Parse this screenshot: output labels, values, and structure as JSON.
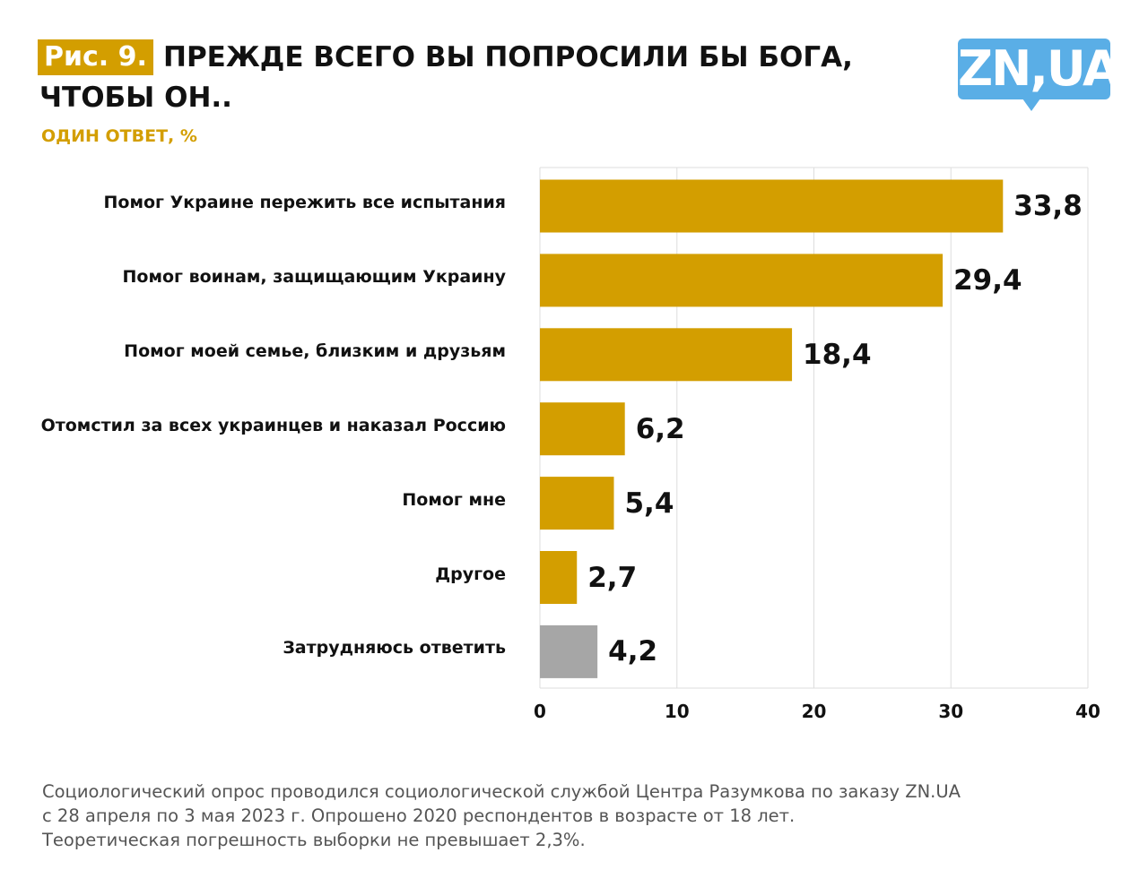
{
  "header": {
    "figure_label": "Рис. 9.",
    "title_line1": "ПРЕЖДЕ ВСЕГО ВЫ ПОПРОСИЛИ БЫ БОГА,",
    "title_line2": "ЧТОБЫ ОН..",
    "subtitle": "ОДИН ОТВЕТ, %",
    "logo": "ZN,UA"
  },
  "chart_data": {
    "type": "bar",
    "orientation": "horizontal",
    "categories": [
      "Помог Украине пережить все испытания",
      "Помог воинам, защищающим Украину",
      "Помог моей семье, близким и друзьям",
      "Отомстил за всех украинцев и наказал Россию",
      "Помог мне",
      "Другое",
      "Затрудняюсь ответить"
    ],
    "values": [
      33.8,
      29.4,
      18.4,
      6.2,
      5.4,
      2.7,
      4.2
    ],
    "value_labels": [
      "33,8",
      "29,4",
      "18,4",
      "6,2",
      "5,4",
      "2,7",
      "4,2"
    ],
    "bar_colors": [
      "#D39E00",
      "#D39E00",
      "#D39E00",
      "#D39E00",
      "#D39E00",
      "#D39E00",
      "#A6A6A6"
    ],
    "xlim": [
      0,
      40
    ],
    "xticks": [
      "0",
      "10",
      "20",
      "30",
      "40"
    ],
    "grid": true
  },
  "footer": {
    "lines": [
      "Социологический опрос проводился социологической службой Центра Разумкова по заказу ZN.UA",
      "с 28 апреля по 3 мая 2023 г. Опрошено 2020 респондентов в возрасте от 18 лет.",
      "Теоретическая погрешность выборки не превышает 2,3%."
    ]
  }
}
